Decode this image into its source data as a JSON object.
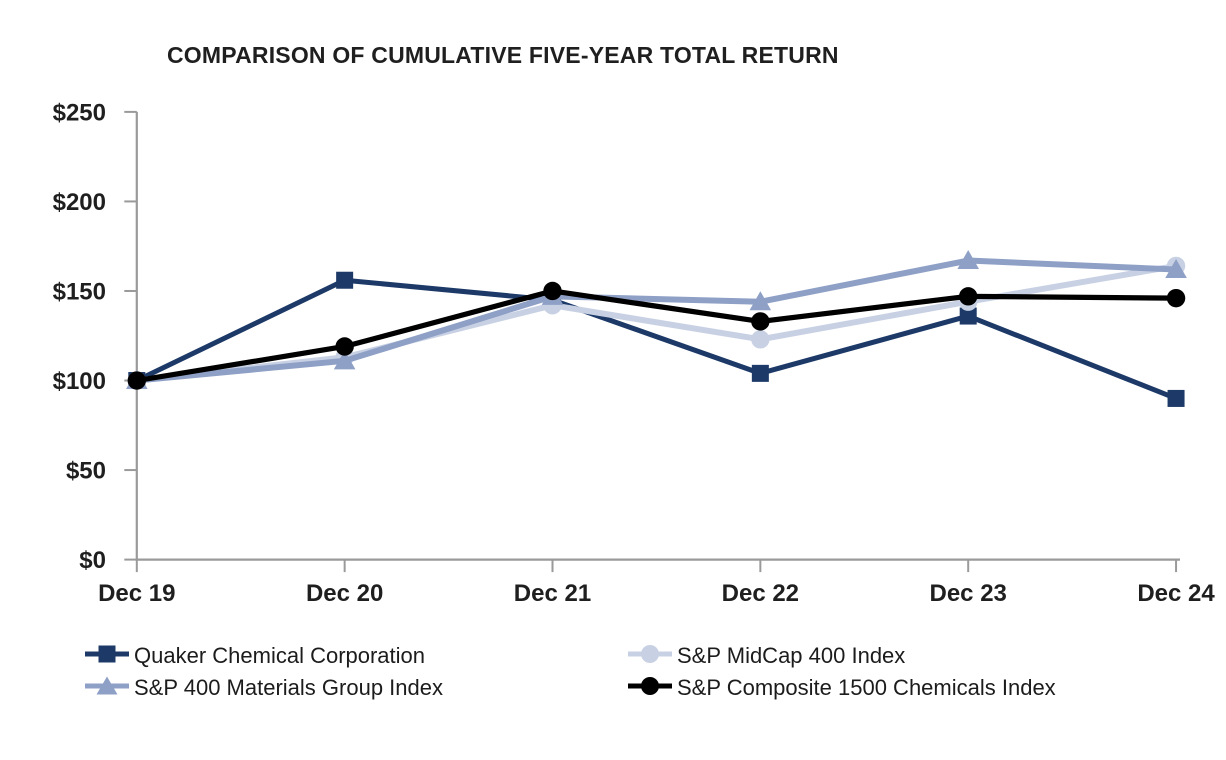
{
  "page": {
    "background": "#ffffff",
    "text_color": "#1c1c1c"
  },
  "chart_data": {
    "type": "line",
    "title": "COMPARISON OF CUMULATIVE FIVE-YEAR TOTAL RETURN",
    "xlabel": "",
    "ylabel": "",
    "categories": [
      "Dec 19",
      "Dec 20",
      "Dec 21",
      "Dec 22",
      "Dec 23",
      "Dec 24"
    ],
    "series": [
      {
        "name": "Quaker Chemical Corporation",
        "marker": "square",
        "color": "#1C3968",
        "values": [
          100,
          156,
          145,
          104,
          136,
          90
        ]
      },
      {
        "name": "S&P MidCap 400 Index",
        "marker": "circle",
        "color": "#C8D1E4",
        "values": [
          100,
          113,
          142,
          123,
          144,
          164
        ]
      },
      {
        "name": "S&P 400 Materials Group Index",
        "marker": "triangle",
        "color": "#8FA0C6",
        "values": [
          100,
          111,
          147,
          144,
          167,
          162
        ]
      },
      {
        "name": "S&P Composite 1500 Chemicals Index",
        "marker": "circle",
        "color": "#000000",
        "values": [
          100,
          119,
          150,
          133,
          147,
          146
        ]
      }
    ],
    "ylim": [
      0,
      250
    ],
    "y_ticks": [
      {
        "value": 250,
        "label": "$250"
      },
      {
        "value": 200,
        "label": "$200"
      },
      {
        "value": 150,
        "label": "$150"
      },
      {
        "value": 100,
        "label": "$100"
      },
      {
        "value": 50,
        "label": "$50"
      },
      {
        "value": 0,
        "label": "$0"
      }
    ],
    "grid": false,
    "legend_position": "bottom",
    "axis_color": "#9A9A9A"
  }
}
